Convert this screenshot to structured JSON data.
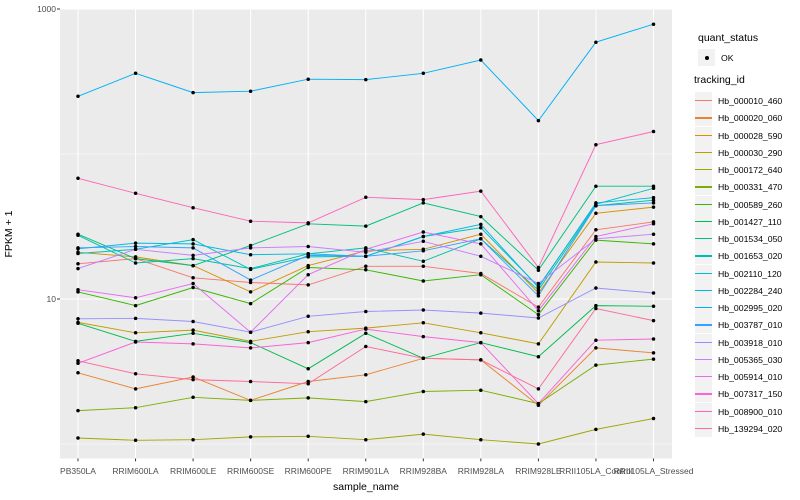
{
  "axes": {
    "y_label": "FPKM + 1",
    "x_label": "sample_name"
  },
  "legend": {
    "quant_status_title": "quant_status",
    "quant_status_items": [
      "OK"
    ],
    "tracking_id_title": "tracking_id"
  },
  "style_colors": {
    "panel_background": "#EBEBEB",
    "grid_line": "#FFFFFF",
    "tick_text": "#4D4D4D",
    "point_color": "#000000",
    "legend_key_background": "#F2F2F2"
  },
  "chart_data": {
    "type": "line",
    "title": "",
    "xlabel": "sample_name",
    "ylabel": "FPKM + 1",
    "y_scale": "log10",
    "ylim": [
      0.84,
      955
    ],
    "y_ticks": [
      {
        "label": "1000",
        "value": 1000
      },
      {
        "label": "10",
        "value": 10
      }
    ],
    "grid": {
      "major_y": [
        10,
        1000
      ],
      "minor_y": [
        1,
        100
      ],
      "vertical_at_each_category": true
    },
    "legend_position": "right",
    "point_marker": "black dot (quant_status = OK)",
    "categories": [
      "PB350LA",
      "RRIM600LA",
      "RRIM600LE",
      "RRIM600SE",
      "RRIM600PE",
      "RRIM901LA",
      "RRIM928BA",
      "RRIM928LA",
      "RRIM928LE",
      "RRII105LA_Control",
      "RRII105LA_Stressed"
    ],
    "series": [
      {
        "name": "Hb_000010_460",
        "color": "#F8766D",
        "values": [
          17.5,
          19,
          14,
          13,
          12.5,
          16.8,
          16.8,
          15,
          8.8,
          30,
          34
        ]
      },
      {
        "name": "Hb_000020_060",
        "color": "#EA8331",
        "values": [
          3.1,
          2.4,
          2.9,
          2.0,
          2.7,
          3.0,
          3.9,
          3.8,
          1.85,
          4.6,
          4.25
        ]
      },
      {
        "name": "Hb_000028_590",
        "color": "#D89000",
        "values": [
          21,
          19.5,
          17,
          11.2,
          17,
          21.5,
          22,
          28,
          11,
          39,
          43
        ]
      },
      {
        "name": "Hb_000030_290",
        "color": "#C09B00",
        "values": [
          6.9,
          5.85,
          6.1,
          5.1,
          5.95,
          6.3,
          6.85,
          5.85,
          4.9,
          18,
          17.7
        ]
      },
      {
        "name": "Hb_000172_640",
        "color": "#A3A500",
        "values": [
          1.1,
          1.06,
          1.07,
          1.12,
          1.13,
          1.07,
          1.17,
          1.07,
          1.0,
          1.26,
          1.5
        ]
      },
      {
        "name": "Hb_000331_470",
        "color": "#7CAE00",
        "values": [
          1.7,
          1.78,
          2.1,
          2.0,
          2.08,
          1.96,
          2.3,
          2.35,
          1.9,
          3.5,
          3.85
        ]
      },
      {
        "name": "Hb_000589_260",
        "color": "#39B600",
        "values": [
          11.2,
          9.0,
          12,
          9.3,
          16.5,
          15.9,
          13.3,
          14.7,
          7.8,
          25.5,
          24
        ]
      },
      {
        "name": "Hb_001427_110",
        "color": "#00BB4E",
        "values": [
          6.8,
          5.1,
          5.8,
          5.0,
          3.3,
          5.8,
          3.9,
          5.0,
          4.0,
          9.0,
          8.9
        ]
      },
      {
        "name": "Hb_001534_050",
        "color": "#00BF7D",
        "values": [
          28,
          19,
          17,
          23.4,
          33,
          31.8,
          46,
          37,
          15.8,
          60,
          60
        ]
      },
      {
        "name": "Hb_001653_020",
        "color": "#00C1A7",
        "values": [
          27.5,
          17.7,
          19,
          16.2,
          20.5,
          22.5,
          18.2,
          26,
          11.5,
          44,
          48
        ]
      },
      {
        "name": "Hb_002110_120",
        "color": "#00BFC4",
        "values": [
          20.6,
          22,
          25.7,
          16,
          19.5,
          19.7,
          27,
          31,
          12.2,
          45,
          58
        ]
      },
      {
        "name": "Hb_002284_240",
        "color": "#00BAE0",
        "values": [
          22.2,
          24.3,
          24,
          20.2,
          20.5,
          19.7,
          27,
          32.7,
          12,
          46,
          50
        ]
      },
      {
        "name": "Hb_002995_020",
        "color": "#00B0F6",
        "values": [
          250,
          360,
          265,
          271,
          328,
          326,
          360,
          445,
          170,
          590,
          785
        ]
      },
      {
        "name": "Hb_003787_010",
        "color": "#35A2FF",
        "values": [
          22.5,
          23,
          22.5,
          13.5,
          20,
          19.7,
          21.5,
          26,
          10.5,
          44,
          46
        ]
      },
      {
        "name": "Hb_003918_010",
        "color": "#9590FF",
        "values": [
          7.3,
          7.35,
          7.0,
          5.9,
          7.6,
          8.2,
          8.4,
          8.0,
          7.4,
          11.9,
          11
        ]
      },
      {
        "name": "Hb_005365_030",
        "color": "#C77CFF",
        "values": [
          16.2,
          22,
          20,
          22.5,
          23,
          21,
          25,
          19.7,
          12.8,
          26,
          28
        ]
      },
      {
        "name": "Hb_005914_010",
        "color": "#E76BF3",
        "values": [
          11.6,
          10.2,
          12.8,
          5.9,
          14.7,
          22,
          29,
          24,
          8.3,
          27,
          33
        ]
      },
      {
        "name": "Hb_007317_150",
        "color": "#FA62DB",
        "values": [
          3.6,
          5.05,
          4.9,
          4.6,
          5.0,
          6.2,
          5.5,
          5.0,
          1.9,
          5.2,
          5.3
        ]
      },
      {
        "name": "Hb_008900_010",
        "color": "#FF62BC",
        "values": [
          68,
          53.6,
          42.6,
          34.4,
          33.5,
          50.3,
          48.5,
          55.5,
          16.5,
          116,
          143
        ]
      },
      {
        "name": "Hb_139294_020",
        "color": "#FF6A98",
        "values": [
          3.75,
          3.05,
          2.78,
          2.7,
          2.6,
          4.7,
          3.9,
          3.8,
          2.4,
          8.6,
          7.1
        ]
      }
    ]
  }
}
